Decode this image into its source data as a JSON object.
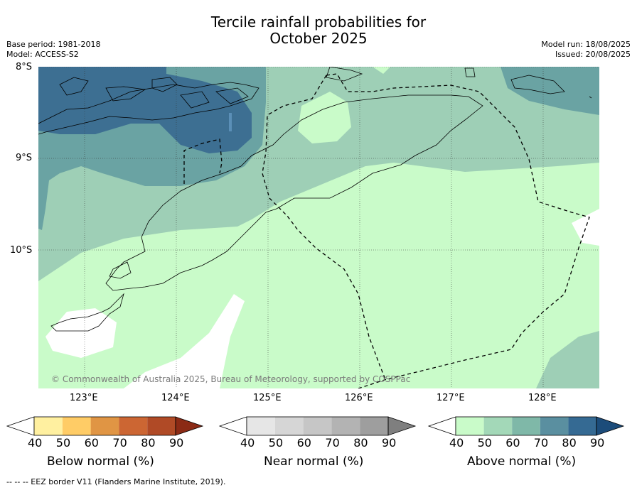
{
  "title_line1": "Tercile rainfall probabilities for",
  "title_line2": "October 2025",
  "base_period": "Base period: 1981-2018",
  "model": "Model: ACCESS-S2",
  "model_run": "Model run: 18/08/2025",
  "issued": "Issued: 20/08/2025",
  "copyright": "© Commonwealth of Australia 2025, Bureau of Meteorology, supported by COSPPac",
  "footnote": "--  --  -- EEZ border V11 (Flanders Marine Institute, 2019).",
  "lat_labels": [
    "8°S",
    "9°S",
    "10°S"
  ],
  "lon_labels": [
    "123°E",
    "124°E",
    "125°E",
    "126°E",
    "127°E",
    "128°E"
  ],
  "colorbars": [
    {
      "name": "below-normal",
      "label": "Below normal (%)",
      "ticks": [
        "40",
        "50",
        "60",
        "70",
        "80",
        "90"
      ],
      "colors": [
        "#ffffff",
        "#fff0a0",
        "#ffcc66",
        "#e09544",
        "#cc6633",
        "#b04a26",
        "#8b2a15"
      ]
    },
    {
      "name": "near-normal",
      "label": "Near normal (%)",
      "ticks": [
        "40",
        "50",
        "60",
        "70",
        "80",
        "90"
      ],
      "colors": [
        "#ffffff",
        "#e6e6e6",
        "#d6d6d6",
        "#c6c6c6",
        "#b3b3b3",
        "#9e9e9e",
        "#7f7f7f"
      ]
    },
    {
      "name": "above-normal",
      "label": "Above normal (%)",
      "ticks": [
        "40",
        "50",
        "60",
        "70",
        "80",
        "90"
      ],
      "colors": [
        "#ffffff",
        "#c9fbc9",
        "#a3d8b8",
        "#7fb8a8",
        "#5a8fa0",
        "#356a93",
        "#1c4c7a"
      ]
    }
  ]
}
